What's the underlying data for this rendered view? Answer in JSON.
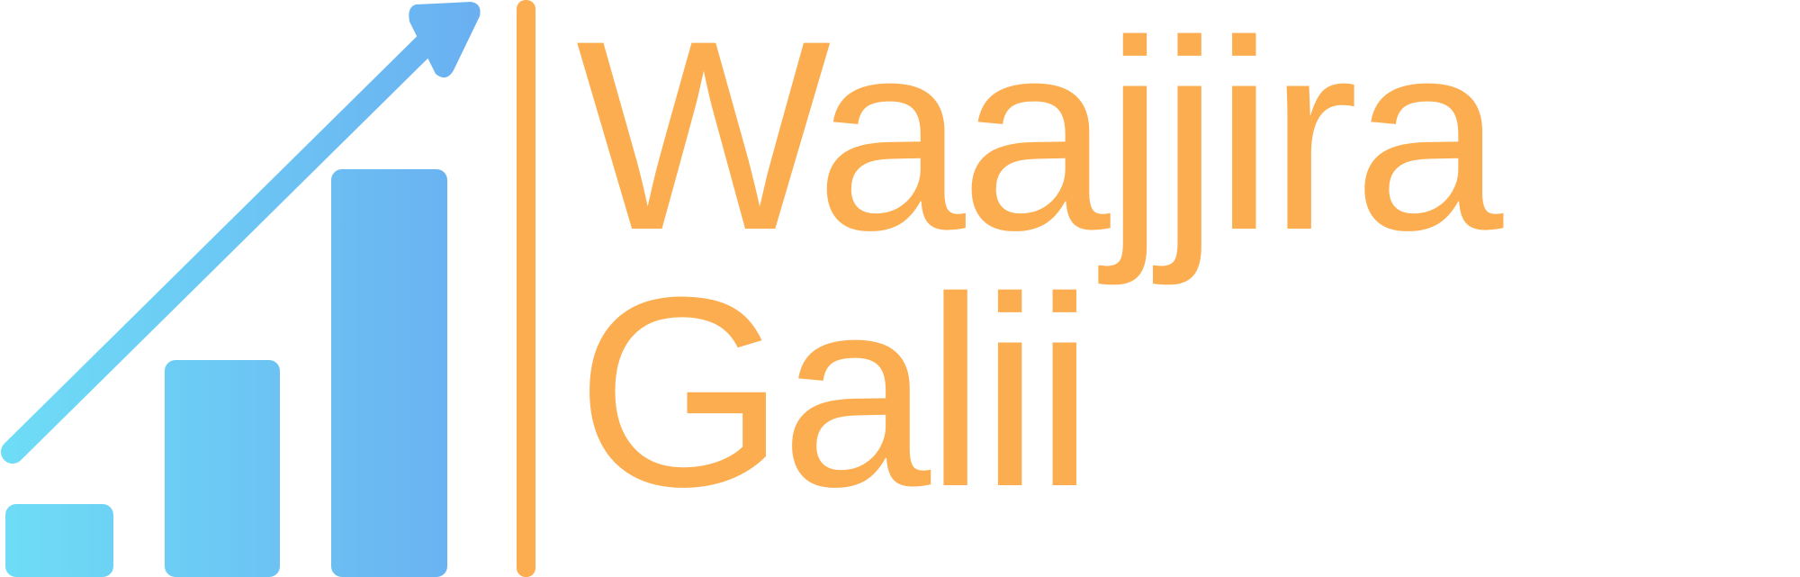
{
  "brand": {
    "name_line_1": "Waajjira",
    "name_line_2": "Galii"
  },
  "icons": {
    "growth_chart": "growth-chart-icon",
    "trend_arrow": "trend-arrow-icon"
  },
  "colors": {
    "wordmark": "#FBAD4F",
    "divider": "#FBAD4F",
    "gradient_start": "#6EDDF6",
    "gradient_end": "#6AAFF1"
  }
}
